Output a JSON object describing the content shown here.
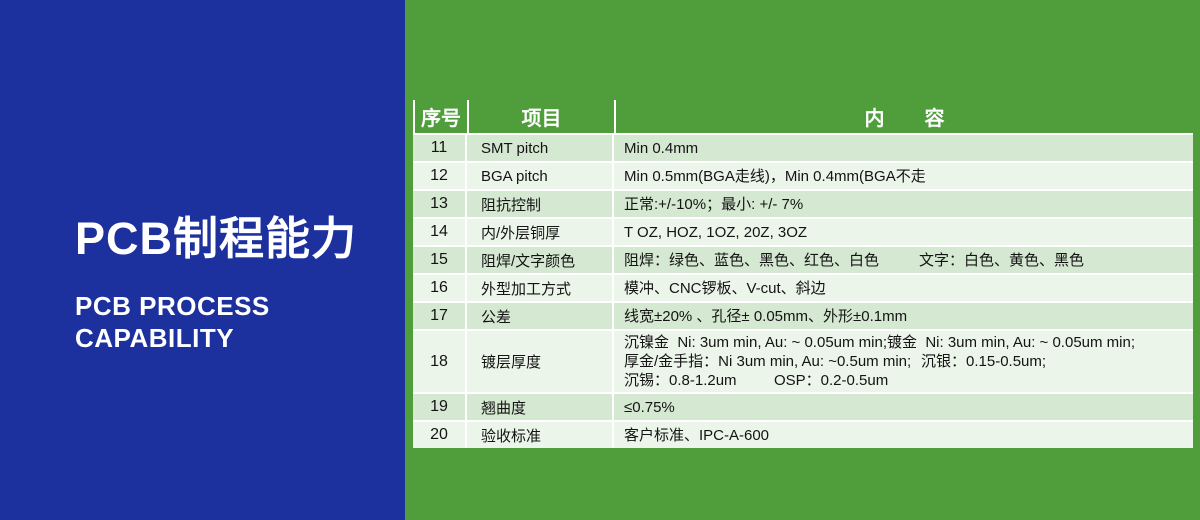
{
  "left_panel": {
    "title_cn": "PCB制程能力",
    "title_en_line1": "PCB PROCESS",
    "title_en_line2": "CAPABILITY"
  },
  "colors": {
    "blue": "#1c319d",
    "green": "#4f9e3b",
    "row_tint": "#d5e8d1",
    "row_light": "#ebf5e9",
    "sep": "#ffffff",
    "cell_text": "#141414"
  },
  "table": {
    "headers": {
      "no": "序号",
      "item": "项目",
      "content": "内　　容"
    },
    "rows": [
      {
        "no": "11",
        "item": "SMT pitch",
        "content": [
          [
            "Min 0.4mm"
          ]
        ]
      },
      {
        "no": "12",
        "item": "BGA pitch",
        "content": [
          [
            "Min 0.5mm(BGA走线)，Min 0.4mm(BGA不走"
          ]
        ]
      },
      {
        "no": "13",
        "item": "阻抗控制",
        "content": [
          [
            "正常:+/-10%；最小: +/- 7%"
          ]
        ]
      },
      {
        "no": "14",
        "item": "内/外层铜厚",
        "content": [
          [
            "T OZ, HOZ, 1OZ, 20Z, 3OZ"
          ]
        ]
      },
      {
        "no": "15",
        "item": "阻焊/文字颜色",
        "content": [
          [
            "阻焊：绿色、蓝色、黑色、红色、白色",
            "文字：白色、黄色、黑色"
          ]
        ]
      },
      {
        "no": "16",
        "item": "外型加工方式",
        "content": [
          [
            "模冲、CNC锣板、V-cut、斜边"
          ]
        ]
      },
      {
        "no": "17",
        "item": "公差",
        "content": [
          [
            "线宽±20% 、孔径± 0.05mm、外形±0.1mm"
          ]
        ]
      },
      {
        "no": "18",
        "item": "镀层厚度",
        "content": [
          [
            "沉镍金  Ni: 3um min, Au: ~ 0.05um min;",
            "镀金  Ni: 3um min, Au: ~ 0.05um min;"
          ],
          [
            "厚金/金手指：Ni 3um min, Au: ~0.5um min;",
            "沉银：0.15-0.5um;"
          ],
          [
            "沉锡：0.8-1.2um",
            "OSP：0.2-0.5um"
          ]
        ]
      },
      {
        "no": "19",
        "item": "翘曲度",
        "content": [
          [
            "≤0.75%"
          ]
        ]
      },
      {
        "no": "20",
        "item": "验收标准",
        "content": [
          [
            "客户标准、IPC-A-600"
          ]
        ]
      }
    ]
  }
}
